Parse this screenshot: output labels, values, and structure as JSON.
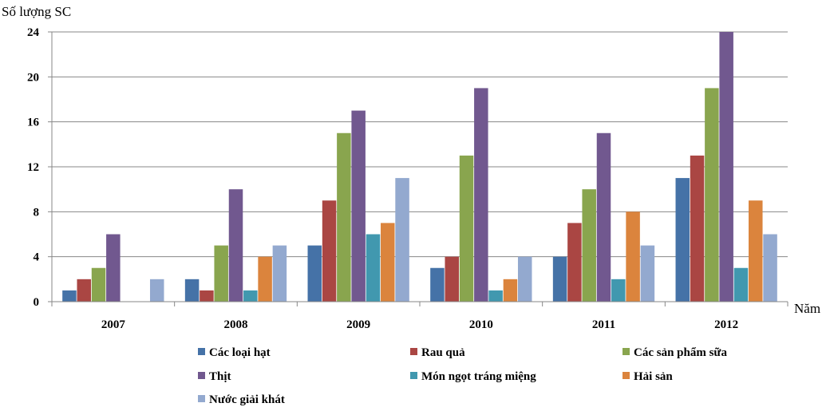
{
  "chart_data": {
    "type": "bar",
    "ylabel": "Số lượng SC",
    "xlabel": "Năm",
    "categories": [
      "2007",
      "2008",
      "2009",
      "2010",
      "2011",
      "2012"
    ],
    "ylim": [
      0,
      24
    ],
    "yticks": [
      0,
      4,
      8,
      12,
      16,
      20,
      24
    ],
    "grid": true,
    "legend_position": "bottom",
    "series": [
      {
        "name": "Các loại hạt",
        "color": "#4572A7",
        "values": [
          1,
          2,
          5,
          3,
          4,
          11
        ]
      },
      {
        "name": "Rau quả",
        "color": "#AA4643",
        "values": [
          2,
          1,
          9,
          4,
          7,
          13
        ]
      },
      {
        "name": "Các sản phẩm sữa",
        "color": "#89A54E",
        "values": [
          3,
          5,
          15,
          13,
          10,
          19
        ]
      },
      {
        "name": "Thịt",
        "color": "#71588F",
        "values": [
          6,
          10,
          17,
          19,
          15,
          24
        ]
      },
      {
        "name": "Món ngọt tráng miệng",
        "color": "#4198AF",
        "values": [
          0,
          1,
          6,
          1,
          2,
          3
        ]
      },
      {
        "name": "Hải sản",
        "color": "#DB843D",
        "values": [
          0,
          4,
          7,
          2,
          8,
          9
        ]
      },
      {
        "name": "Nước giải khát",
        "color": "#93A9CF",
        "values": [
          2,
          5,
          11,
          4,
          5,
          6
        ]
      }
    ]
  }
}
